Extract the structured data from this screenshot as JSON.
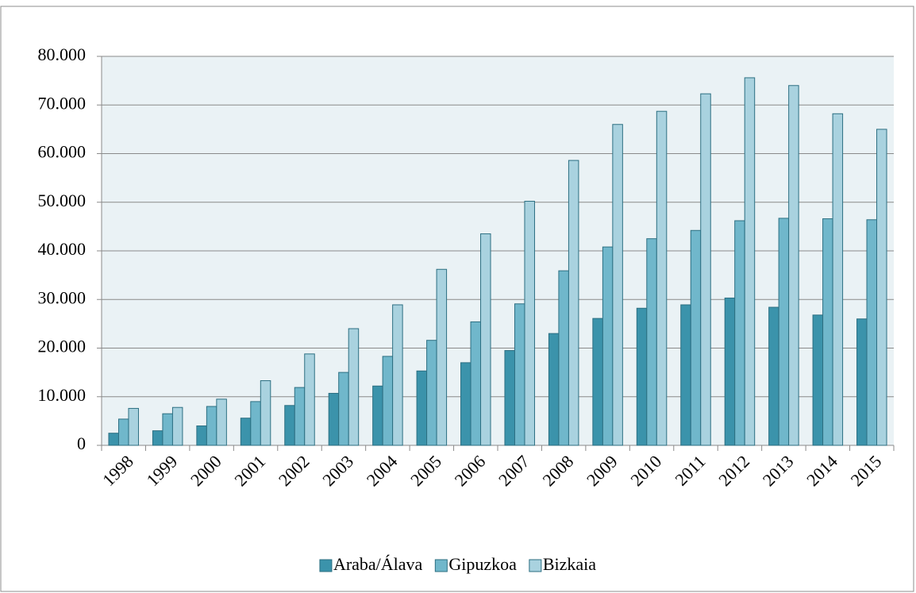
{
  "chart_data": {
    "type": "bar",
    "categories": [
      "1998",
      "1999",
      "2000",
      "2001",
      "2002",
      "2003",
      "2004",
      "2005",
      "2006",
      "2007",
      "2008",
      "2009",
      "2010",
      "2011",
      "2012",
      "2013",
      "2014",
      "2015"
    ],
    "series": [
      {
        "name": "Araba/Álava",
        "color": "#3b93ab",
        "values": [
          2500,
          3000,
          4000,
          5600,
          8200,
          10700,
          12200,
          15300,
          17000,
          19500,
          23000,
          26100,
          28200,
          28900,
          30300,
          28400,
          26800,
          26000
        ]
      },
      {
        "name": "Gipuzkoa",
        "color": "#70b7cb",
        "values": [
          5400,
          6500,
          8000,
          9000,
          11900,
          15000,
          18300,
          21600,
          25400,
          29100,
          35900,
          40800,
          42500,
          44200,
          46200,
          46700,
          46600,
          46400
        ]
      },
      {
        "name": "Bizkaia",
        "color": "#a9d2df",
        "values": [
          7600,
          7800,
          9500,
          13300,
          18800,
          24000,
          28900,
          36200,
          43500,
          50200,
          58600,
          66000,
          68700,
          72300,
          75600,
          74000,
          68200,
          65000
        ]
      }
    ],
    "ylim": [
      0,
      80000
    ],
    "yticks": [
      0,
      {
        "value": 10000,
        "label": "10.000"
      },
      {
        "value": 20000,
        "label": "20.000"
      },
      {
        "value": 30000,
        "label": "30.000"
      },
      {
        "value": 40000,
        "label": "40.000"
      },
      {
        "value": 50000,
        "label": "50.000"
      },
      {
        "value": 60000,
        "label": "60.000"
      },
      {
        "value": 70000,
        "label": "70.000"
      },
      {
        "value": 80000,
        "label": "80.000"
      }
    ],
    "grid": true,
    "legend": "bottom"
  }
}
